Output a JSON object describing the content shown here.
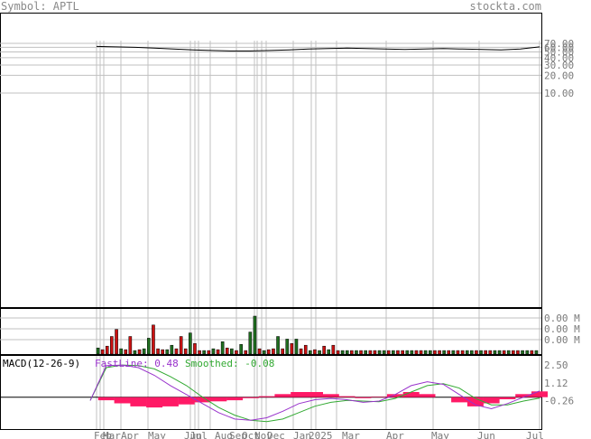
{
  "header": {
    "symbol_label": "Symbol: APTL",
    "site": "stockta.com"
  },
  "colors": {
    "price_line": "#000000",
    "grid": "#c0c0c0",
    "axis_text": "#7a7a7a",
    "vol_up": "#1f6e1f",
    "vol_down": "#cc1111",
    "fastline": "#9933cc",
    "smoothed": "#33aa33",
    "histogram": "#ff1a66"
  },
  "chart_data": [
    {
      "type": "line",
      "name": "price",
      "title": "",
      "y_tick_labels": [
        "70.00",
        "60.00",
        "50.00",
        "40.00",
        "30.00",
        "20.00",
        "10.00"
      ],
      "y_ticks": [
        70,
        60,
        50,
        40,
        30,
        20,
        10
      ],
      "scale": "log",
      "x_tick_labels": [
        "Feb",
        "Mar",
        "Apr",
        "May",
        "Jun",
        "Jul",
        "Aug",
        "Sep",
        "Oct",
        "Nov",
        "Dec",
        "Jan",
        "2025",
        "Feb",
        "Mar",
        "Apr",
        "May",
        "Jun",
        "Jul"
      ],
      "values": [
        62,
        61,
        60,
        58,
        56,
        54,
        53,
        52,
        52,
        53,
        54,
        56,
        57,
        58,
        57,
        56,
        55,
        56,
        57,
        56,
        55,
        54,
        56,
        61
      ]
    },
    {
      "type": "bar",
      "name": "volume",
      "y_tick_labels": [
        "0.00 M",
        "0.00 M",
        "0.00 M"
      ],
      "bars": [
        {
          "v": 0.07,
          "up": true
        },
        {
          "v": 0.05,
          "up": false
        },
        {
          "v": 0.09,
          "up": false
        },
        {
          "v": 0.2,
          "up": false
        },
        {
          "v": 0.28,
          "up": false
        },
        {
          "v": 0.06,
          "up": true
        },
        {
          "v": 0.05,
          "up": false
        },
        {
          "v": 0.2,
          "up": false
        },
        {
          "v": 0.04,
          "up": true
        },
        {
          "v": 0.05,
          "up": false
        },
        {
          "v": 0.06,
          "up": true
        },
        {
          "v": 0.18,
          "up": true
        },
        {
          "v": 0.33,
          "up": false
        },
        {
          "v": 0.06,
          "up": false
        },
        {
          "v": 0.05,
          "up": false
        },
        {
          "v": 0.05,
          "up": true
        },
        {
          "v": 0.1,
          "up": true
        },
        {
          "v": 0.06,
          "up": false
        },
        {
          "v": 0.2,
          "up": false
        },
        {
          "v": 0.06,
          "up": false
        },
        {
          "v": 0.24,
          "up": true
        },
        {
          "v": 0.12,
          "up": false
        },
        {
          "v": 0.04,
          "up": false
        },
        {
          "v": 0.04,
          "up": true
        },
        {
          "v": 0.04,
          "up": false
        },
        {
          "v": 0.06,
          "up": true
        },
        {
          "v": 0.05,
          "up": false
        },
        {
          "v": 0.14,
          "up": true
        },
        {
          "v": 0.07,
          "up": false
        },
        {
          "v": 0.06,
          "up": true
        },
        {
          "v": 0.04,
          "up": false
        },
        {
          "v": 0.11,
          "up": true
        },
        {
          "v": 0.04,
          "up": false
        },
        {
          "v": 0.25,
          "up": true
        },
        {
          "v": 0.43,
          "up": true
        },
        {
          "v": 0.06,
          "up": false
        },
        {
          "v": 0.04,
          "up": true
        },
        {
          "v": 0.05,
          "up": false
        },
        {
          "v": 0.06,
          "up": false
        },
        {
          "v": 0.2,
          "up": true
        },
        {
          "v": 0.06,
          "up": false
        },
        {
          "v": 0.17,
          "up": true
        },
        {
          "v": 0.12,
          "up": false
        },
        {
          "v": 0.17,
          "up": true
        },
        {
          "v": 0.06,
          "up": false
        },
        {
          "v": 0.1,
          "up": false
        },
        {
          "v": 0.04,
          "up": true
        },
        {
          "v": 0.05,
          "up": false
        },
        {
          "v": 0.04,
          "up": true
        },
        {
          "v": 0.09,
          "up": false
        },
        {
          "v": 0.05,
          "up": true
        },
        {
          "v": 0.1,
          "up": false
        },
        {
          "v": 0.04,
          "up": false
        },
        {
          "v": 0.04,
          "up": true
        },
        {
          "v": 0.04,
          "up": true
        },
        {
          "v": 0.04,
          "up": false
        },
        {
          "v": 0.04,
          "up": true
        },
        {
          "v": 0.04,
          "up": false
        },
        {
          "v": 0.04,
          "up": true
        },
        {
          "v": 0.04,
          "up": false
        },
        {
          "v": 0.04,
          "up": false
        },
        {
          "v": 0.04,
          "up": true
        },
        {
          "v": 0.04,
          "up": true
        },
        {
          "v": 0.04,
          "up": false
        },
        {
          "v": 0.04,
          "up": true
        },
        {
          "v": 0.04,
          "up": false
        },
        {
          "v": 0.04,
          "up": false
        },
        {
          "v": 0.04,
          "up": true
        },
        {
          "v": 0.04,
          "up": true
        },
        {
          "v": 0.04,
          "up": false
        },
        {
          "v": 0.04,
          "up": false
        },
        {
          "v": 0.04,
          "up": true
        },
        {
          "v": 0.04,
          "up": true
        },
        {
          "v": 0.04,
          "up": false
        },
        {
          "v": 0.04,
          "up": false
        },
        {
          "v": 0.04,
          "up": true
        },
        {
          "v": 0.04,
          "up": false
        },
        {
          "v": 0.04,
          "up": true
        },
        {
          "v": 0.04,
          "up": false
        },
        {
          "v": 0.04,
          "up": false
        },
        {
          "v": 0.04,
          "up": true
        },
        {
          "v": 0.04,
          "up": true
        },
        {
          "v": 0.04,
          "up": false
        },
        {
          "v": 0.04,
          "up": true
        },
        {
          "v": 0.04,
          "up": false
        },
        {
          "v": 0.04,
          "up": false
        },
        {
          "v": 0.04,
          "up": true
        },
        {
          "v": 0.04,
          "up": true
        },
        {
          "v": 0.04,
          "up": false
        },
        {
          "v": 0.04,
          "up": true
        },
        {
          "v": 0.04,
          "up": false
        },
        {
          "v": 0.04,
          "up": false
        },
        {
          "v": 0.04,
          "up": true
        },
        {
          "v": 0.04,
          "up": true
        },
        {
          "v": 0.04,
          "up": false
        },
        {
          "v": 0.04,
          "up": true
        }
      ]
    },
    {
      "type": "line",
      "name": "macd",
      "label": "MACD(12-26-9)",
      "fastline_label": "FastLine: 0.48",
      "smoothed_label": "Smoothed: -0.08",
      "y_tick_labels": [
        "2.50",
        "1.12",
        "-0.26"
      ],
      "y_ticks": [
        2.5,
        1.12,
        -0.26
      ],
      "ylim": [
        -2.2,
        3.0
      ],
      "fastline": [
        -0.26,
        2.45,
        2.5,
        2.3,
        1.7,
        0.9,
        0.2,
        -0.5,
        -1.2,
        -1.7,
        -1.8,
        -1.6,
        -1.1,
        -0.5,
        -0.2,
        -0.1,
        -0.2,
        -0.4,
        -0.3,
        0.2,
        0.9,
        1.2,
        1.0,
        0.2,
        -0.6,
        -0.9,
        -0.5,
        0.0,
        0.48
      ],
      "smoothed": [
        -0.26,
        2.3,
        2.5,
        2.45,
        2.2,
        1.6,
        0.9,
        0.0,
        -0.8,
        -1.4,
        -1.8,
        -1.9,
        -1.7,
        -1.2,
        -0.7,
        -0.4,
        -0.25,
        -0.3,
        -0.35,
        -0.1,
        0.4,
        0.9,
        1.05,
        0.7,
        -0.1,
        -0.6,
        -0.6,
        -0.3,
        -0.08
      ],
      "histogram": [
        0.0,
        -0.3,
        -0.6,
        -0.9,
        -1.0,
        -0.9,
        -0.7,
        -0.5,
        -0.4,
        -0.3,
        -0.1,
        0.1,
        0.3,
        0.5,
        0.5,
        0.3,
        0.1,
        -0.1,
        0.05,
        0.3,
        0.5,
        0.3,
        0.0,
        -0.5,
        -0.9,
        -0.6,
        -0.2,
        0.3,
        0.56
      ]
    }
  ]
}
